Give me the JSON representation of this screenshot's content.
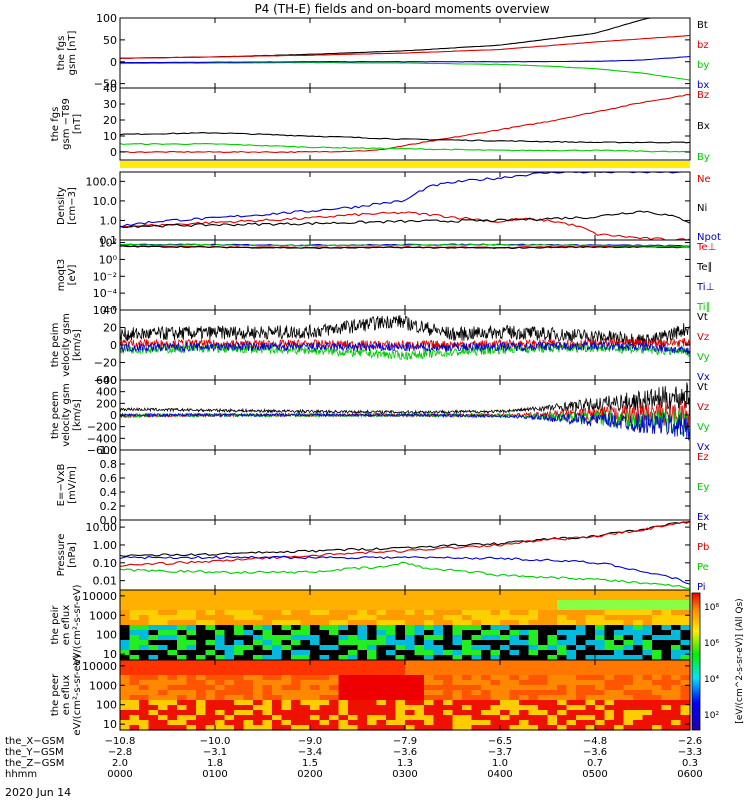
{
  "title": "P4 (TH-E) fields and on-board moments overview",
  "footer_date": "2020 Jun 14",
  "colors": {
    "black": "#000000",
    "red": "#dd0000",
    "green": "#00cc00",
    "blue": "#0000cc",
    "yellow": "#ffee00"
  },
  "chart_data": [
    {
      "type": "line",
      "ylabel": "the fgs gsm [nT]",
      "ylim": [
        -60,
        100
      ],
      "yticks": [
        "100",
        "50",
        "0",
        "−50"
      ],
      "ytick_values": [
        100,
        50,
        0,
        -50
      ],
      "series": [
        {
          "name": "Bt",
          "color": "#000000",
          "x": [
            0,
            1,
            2,
            3,
            4,
            5,
            5.4,
            6
          ],
          "values": [
            8,
            11,
            17,
            25,
            38,
            65,
            90,
            125
          ]
        },
        {
          "name": "bz",
          "color": "#dd0000",
          "x": [
            0,
            1,
            2,
            3,
            4,
            5,
            6
          ],
          "values": [
            8,
            11,
            15,
            20,
            28,
            45,
            60
          ]
        },
        {
          "name": "by",
          "color": "#00cc00",
          "x": [
            0,
            1,
            2,
            3,
            4,
            4.5,
            5,
            5.5,
            6
          ],
          "values": [
            -4,
            -3,
            -2,
            -3,
            -6,
            -10,
            -16,
            -26,
            -42
          ]
        },
        {
          "name": "bx",
          "color": "#0000cc",
          "x": [
            0,
            1,
            2,
            3,
            4,
            5,
            5.5,
            6
          ],
          "values": [
            -2,
            -1,
            0,
            0,
            0,
            1,
            4,
            12
          ]
        }
      ]
    },
    {
      "type": "line",
      "ylabel": "the fgs gsm −T89 [nT]",
      "ylim": [
        -5,
        40
      ],
      "yticks": [
        "40",
        "30",
        "20",
        "10",
        "0"
      ],
      "ytick_values": [
        40,
        30,
        20,
        10,
        0
      ],
      "series": [
        {
          "name": "Bz",
          "color": "#dd0000",
          "x": [
            0,
            1,
            2,
            2.7,
            3,
            3.5,
            4,
            4.5,
            5,
            5.5,
            6
          ],
          "values": [
            0,
            0,
            0,
            1,
            4,
            9,
            14,
            19,
            25,
            31,
            36
          ]
        },
        {
          "name": "Bx",
          "color": "#000000",
          "x": [
            0,
            1,
            2,
            3,
            4,
            5,
            6
          ],
          "values": [
            11,
            12,
            10,
            8,
            7,
            6,
            6
          ]
        },
        {
          "name": "By",
          "color": "#00cc00",
          "x": [
            0,
            1,
            2,
            3,
            4,
            5,
            6
          ],
          "values": [
            5,
            5,
            3,
            2,
            1,
            1,
            0
          ]
        }
      ]
    },
    {
      "type": "line",
      "ylabel": "Density [cm−3]",
      "yscale": "log",
      "ylim": [
        0.1,
        300
      ],
      "yticks": [
        "100.0",
        "10.0",
        "1.0",
        "0.1"
      ],
      "ytick_values": [
        100,
        10,
        1,
        0.1
      ],
      "series": [
        {
          "name": "Ne",
          "color": "#dd0000",
          "x": [
            0,
            0.5,
            1,
            1.5,
            2,
            2.5,
            3,
            3.5,
            4,
            4.2,
            4.5,
            5,
            5.5,
            6
          ],
          "values": [
            0.5,
            0.6,
            0.8,
            1.0,
            1.3,
            2.0,
            2.5,
            1.5,
            0.8,
            1.2,
            1.0,
            0.2,
            0.12,
            0.1
          ]
        },
        {
          "name": "Ni",
          "color": "#000000",
          "x": [
            0,
            1,
            2,
            3,
            4,
            5,
            5.5,
            6
          ],
          "values": [
            0.5,
            0.6,
            0.7,
            0.9,
            1.0,
            1.5,
            3.0,
            0.8
          ]
        },
        {
          "name": "Npot",
          "color": "#0000cc",
          "x": [
            0,
            0.5,
            1,
            1.5,
            2,
            2.5,
            3,
            3.1,
            3.3,
            3.6,
            4,
            4.6
          ],
          "values": [
            0.5,
            1.0,
            1.3,
            2.0,
            3.0,
            5.0,
            10.0,
            20.0,
            60.0,
            100.0,
            150.0,
            300.0
          ]
        }
      ]
    },
    {
      "type": "line",
      "ylabel": "moqt3 [eV]",
      "yscale": "log",
      "ylim": [
        1e-06,
        200
      ],
      "yticks": [
        "10²",
        "10⁰",
        "10⁻²",
        "10⁻⁴",
        "10⁻⁶"
      ],
      "ytick_values": [
        100,
        1,
        0.01,
        0.0001,
        1e-06
      ],
      "series": [
        {
          "name": "Te⊥",
          "color": "#dd0000",
          "x": [
            0,
            1,
            2,
            3,
            4,
            5,
            6
          ],
          "values": [
            40,
            30,
            25,
            30,
            25,
            35,
            30
          ]
        },
        {
          "name": "Te∥",
          "color": "#000000",
          "x": [
            0,
            1,
            2,
            3,
            4,
            5,
            6
          ],
          "values": [
            35,
            28,
            22,
            26,
            22,
            30,
            28
          ]
        },
        {
          "name": "Ti⊥",
          "color": "#0000cc",
          "x": [
            0,
            1,
            2,
            3,
            4,
            5,
            6
          ],
          "values": [
            60,
            55,
            50,
            55,
            60,
            50,
            40
          ]
        },
        {
          "name": "Ti∥",
          "color": "#00cc00",
          "x": [
            0,
            1,
            2,
            3,
            4,
            5,
            6
          ],
          "values": [
            55,
            50,
            45,
            50,
            55,
            45,
            35
          ]
        }
      ]
    },
    {
      "type": "line",
      "ylabel": "the peim velocity gsm [km/s]",
      "ylim": [
        -40,
        40
      ],
      "yticks": [
        "40",
        "20",
        "0",
        "−20",
        "−40"
      ],
      "ytick_values": [
        40,
        20,
        0,
        -20,
        -40
      ],
      "series": [
        {
          "name": "Vt",
          "color": "#000000",
          "x": [
            0,
            1,
            2,
            2.9,
            3.5,
            4,
            5,
            5.6,
            6
          ],
          "values": [
            12,
            14,
            15,
            28,
            12,
            15,
            10,
            5,
            20
          ]
        },
        {
          "name": "Vz",
          "color": "#dd0000",
          "x": [
            0,
            1,
            2,
            3,
            4,
            5,
            6
          ],
          "values": [
            2,
            1,
            1,
            0,
            1,
            2,
            3
          ]
        },
        {
          "name": "Vy",
          "color": "#00cc00",
          "x": [
            0,
            1,
            2,
            3,
            4,
            5,
            6
          ],
          "values": [
            -5,
            -4,
            -6,
            -12,
            -5,
            -3,
            -8
          ]
        },
        {
          "name": "Vx",
          "color": "#0000cc",
          "x": [
            0,
            1,
            2,
            3,
            4,
            5,
            5.7,
            6
          ],
          "values": [
            -3,
            -2,
            -2,
            -3,
            -2,
            -1,
            -3,
            -8
          ]
        }
      ]
    },
    {
      "type": "line",
      "ylabel": "the peem velocity gsm [km/s]",
      "ylim": [
        -600,
        600
      ],
      "yticks": [
        "600",
        "400",
        "200",
        "0",
        "−200",
        "−400",
        "−600"
      ],
      "ytick_values": [
        600,
        400,
        200,
        0,
        -200,
        -400,
        -600
      ],
      "series": [
        {
          "name": "Vt",
          "color": "#000000",
          "x": [
            0,
            1,
            2,
            3,
            4,
            4.5,
            5,
            5.5,
            6
          ],
          "values": [
            100,
            80,
            60,
            50,
            60,
            120,
            180,
            250,
            330
          ]
        },
        {
          "name": "Vz",
          "color": "#dd0000",
          "x": [
            0,
            1,
            2,
            3,
            4,
            5,
            6
          ],
          "values": [
            -20,
            0,
            0,
            0,
            0,
            10,
            20
          ]
        },
        {
          "name": "Vy",
          "color": "#00cc00",
          "x": [
            0,
            1,
            2,
            3,
            4,
            5,
            6
          ],
          "values": [
            -10,
            -5,
            -5,
            -5,
            -10,
            -50,
            -150
          ]
        },
        {
          "name": "Vx",
          "color": "#0000cc",
          "x": [
            0,
            1,
            2,
            3,
            4,
            5,
            6
          ],
          "values": [
            0,
            0,
            0,
            0,
            -20,
            -80,
            -200
          ]
        }
      ]
    },
    {
      "type": "line",
      "ylabel": "E=−VxB [mV/m]",
      "ylim": [
        0,
        1
      ],
      "yticks": [
        "1.0",
        "0.8",
        "0.6",
        "0.4",
        "0.2",
        "0.0"
      ],
      "ytick_values": [
        1,
        0.8,
        0.6,
        0.4,
        0.2,
        0
      ],
      "legend": [
        {
          "name": "Ez",
          "color": "#dd0000"
        },
        {
          "name": "Ey",
          "color": "#00cc00"
        },
        {
          "name": "Ex",
          "color": "#0000cc"
        }
      ],
      "series": []
    },
    {
      "type": "line",
      "ylabel": "Pressure [nPa]",
      "yscale": "log",
      "ylim": [
        0.003,
        25
      ],
      "yticks": [
        "10.00",
        "1.00",
        "0.10",
        "0.01"
      ],
      "ytick_values": [
        10,
        1,
        0.1,
        0.01
      ],
      "series": [
        {
          "name": "Pt",
          "color": "#000000",
          "x": [
            0,
            1,
            2,
            3,
            4,
            5,
            5.5,
            6
          ],
          "values": [
            0.25,
            0.3,
            0.45,
            0.7,
            1.2,
            3.0,
            7.0,
            20.0
          ]
        },
        {
          "name": "Pb",
          "color": "#dd0000",
          "x": [
            0,
            1,
            2,
            3,
            4,
            5,
            5.5,
            6
          ],
          "values": [
            0.07,
            0.12,
            0.25,
            0.45,
            1.0,
            2.8,
            6.5,
            18.0
          ]
        },
        {
          "name": "Pe",
          "color": "#00cc00",
          "x": [
            0,
            1,
            2,
            2.8,
            3,
            3.2,
            4,
            5,
            5.5,
            6
          ],
          "values": [
            0.04,
            0.03,
            0.03,
            0.06,
            0.1,
            0.05,
            0.02,
            0.012,
            0.007,
            0.004
          ]
        },
        {
          "name": "Pi",
          "color": "#0000cc",
          "x": [
            0,
            1,
            2,
            3,
            4,
            5,
            5.5,
            6
          ],
          "values": [
            0.2,
            0.2,
            0.2,
            0.2,
            0.18,
            0.1,
            0.03,
            0.006
          ]
        }
      ]
    },
    {
      "type": "heatmap",
      "ylabel": "the peir en eflux eV/(cm²-s-sr-eV)",
      "yscale": "log",
      "ylim": [
        5,
        20000
      ],
      "yticks": [
        "10000",
        "1000",
        "100",
        "10"
      ],
      "ytick_values": [
        10000,
        1000,
        100,
        10
      ]
    },
    {
      "type": "heatmap",
      "ylabel": "the peer en eflux eV/(cm²-s-sr-eV)",
      "yscale": "log",
      "ylim": [
        5,
        20000
      ],
      "yticks": [
        "10000",
        "1000",
        "100",
        "10"
      ],
      "ytick_values": [
        10000,
        1000,
        100,
        10
      ],
      "colorbar": {
        "label": "[eV/(cm^2-s-sr-eV)] (All Qs)",
        "ticks": [
          "10⁸",
          "10⁶",
          "10⁴",
          "10²"
        ]
      }
    }
  ],
  "x_axis": {
    "xlim": [
      0,
      6
    ],
    "tick_values": [
      0,
      1,
      2,
      3,
      4,
      5,
      6
    ],
    "rows": [
      {
        "label": "the_X−GSM",
        "values": [
          "−10.8",
          "−10.0",
          "−9.0",
          "−7.9",
          "−6.5",
          "−4.8",
          "−2.6"
        ]
      },
      {
        "label": "the_Y−GSM",
        "values": [
          "−2.8",
          "−3.1",
          "−3.4",
          "−3.6",
          "−3.7",
          "−3.6",
          "−3.3"
        ]
      },
      {
        "label": "the_Z−GSM",
        "values": [
          "2.0",
          "1.8",
          "1.5",
          "1.3",
          "1.0",
          "0.7",
          "0.3"
        ]
      },
      {
        "label": "hhmm",
        "values": [
          "0000",
          "0100",
          "0200",
          "0300",
          "0400",
          "0500",
          "0600"
        ]
      }
    ]
  }
}
